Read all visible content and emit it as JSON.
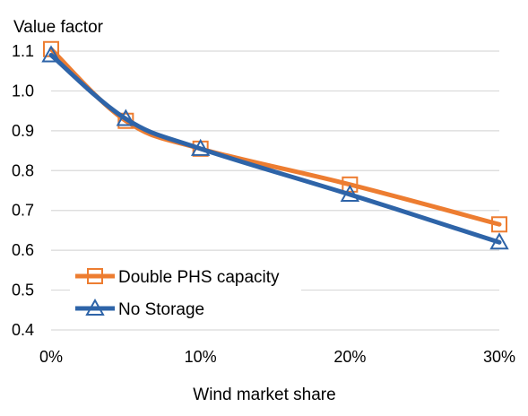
{
  "chart_data": {
    "type": "line",
    "ylabel": "Value factor",
    "xlabel": "Wind market share",
    "x": [
      0,
      5,
      10,
      20,
      30
    ],
    "xticks": [
      "0%",
      "10%",
      "20%",
      "30%"
    ],
    "xtick_values": [
      0,
      10,
      20,
      30
    ],
    "xlim": [
      0,
      30
    ],
    "ylim": [
      0.4,
      1.15
    ],
    "yticks": [
      "0.4",
      "0.5",
      "0.6",
      "0.7",
      "0.8",
      "0.9",
      "1.0",
      "1.1"
    ],
    "ytick_values": [
      0.4,
      0.5,
      0.6,
      0.7,
      0.8,
      0.9,
      1.0,
      1.1
    ],
    "grid": "horizontal",
    "legend_position": "bottom-left",
    "series": [
      {
        "name": "Double PHS capacity",
        "values": [
          1.105,
          0.925,
          0.855,
          0.765,
          0.665
        ],
        "color": "#ED7D31",
        "marker": "square"
      },
      {
        "name": "No Storage",
        "values": [
          1.09,
          0.93,
          0.855,
          0.74,
          0.62
        ],
        "color": "#2E64A8",
        "marker": "triangle"
      }
    ]
  }
}
